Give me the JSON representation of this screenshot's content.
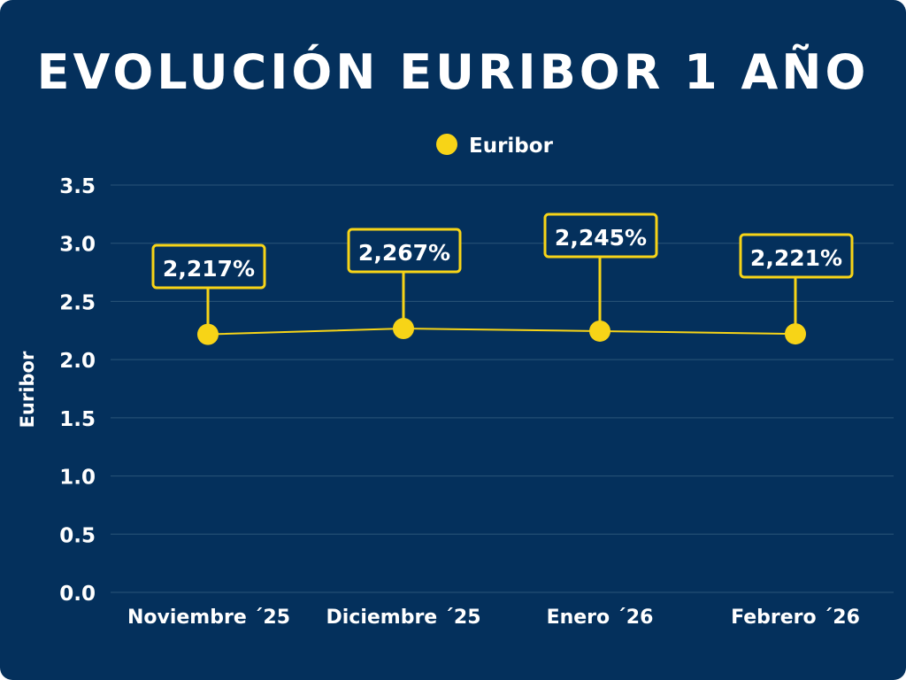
{
  "colors": {
    "background": "#04305c",
    "accent": "#f7d417",
    "text": "#ffffff",
    "grid": "#2a5578"
  },
  "chart_data": {
    "type": "line",
    "title": "EVOLUCIÓN EURIBOR 1 AÑO",
    "ylabel": "Euribor",
    "xlabel": "",
    "ylim": [
      0,
      3.5
    ],
    "yticks": [
      "0.0",
      "0.5",
      "1.0",
      "1.5",
      "2.0",
      "2.5",
      "3.0",
      "3.5"
    ],
    "grid": true,
    "legend_position": "top-center",
    "categories": [
      "Noviembre ´25",
      "Diciembre ´25",
      "Enero ´26",
      "Febrero ´26"
    ],
    "series": [
      {
        "name": "Euribor",
        "values": [
          2.217,
          2.267,
          2.245,
          2.221
        ],
        "data_labels": [
          "2,217%",
          "2,267%",
          "2,245%",
          "2,221%"
        ]
      }
    ]
  }
}
